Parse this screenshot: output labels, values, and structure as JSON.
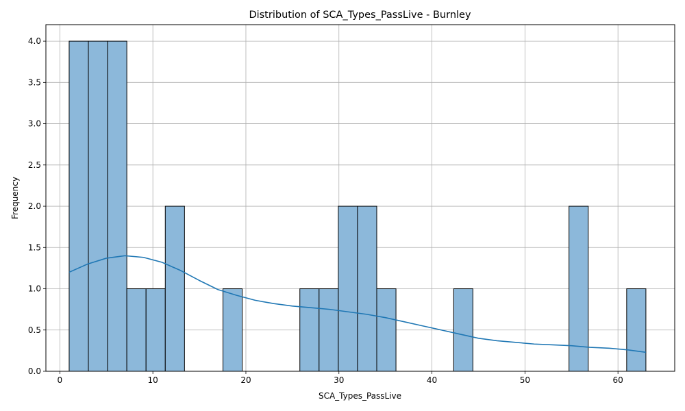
{
  "chart_data": {
    "type": "bar",
    "subtype": "histogram-with-kde",
    "title": "Distribution of SCA_Types_PassLive - Burnley",
    "xlabel": "SCA_Types_PassLive",
    "ylabel": "Frequency",
    "xlim": [
      -1.5,
      66.1
    ],
    "ylim": [
      0,
      4.2
    ],
    "x_ticks": [
      0,
      10,
      20,
      30,
      40,
      50,
      60
    ],
    "y_ticks": [
      0.0,
      0.5,
      1.0,
      1.5,
      2.0,
      2.5,
      3.0,
      3.5,
      4.0
    ],
    "x_tick_labels": [
      "0",
      "10",
      "20",
      "30",
      "40",
      "50",
      "60"
    ],
    "y_tick_labels": [
      "0.0",
      "0.5",
      "1.0",
      "1.5",
      "2.0",
      "2.5",
      "3.0",
      "3.5",
      "4.0"
    ],
    "grid": true,
    "bin_start": 1,
    "bin_width": 2.0667,
    "values": [
      4,
      4,
      4,
      1,
      1,
      2,
      0,
      0,
      1,
      0,
      0,
      0,
      1,
      1,
      2,
      2,
      1,
      0,
      0,
      0,
      1,
      0,
      0,
      0,
      0,
      0,
      2,
      0,
      0,
      1
    ],
    "kde": {
      "x": [
        1,
        3,
        5,
        7,
        9,
        11,
        13,
        15,
        17,
        19,
        21,
        23,
        25,
        27,
        29,
        31,
        33,
        35,
        37,
        39,
        41,
        43,
        45,
        47,
        49,
        51,
        53,
        55,
        57,
        59,
        61,
        63
      ],
      "y": [
        1.2,
        1.3,
        1.37,
        1.4,
        1.38,
        1.32,
        1.22,
        1.1,
        0.99,
        0.92,
        0.86,
        0.82,
        0.79,
        0.77,
        0.75,
        0.72,
        0.69,
        0.65,
        0.6,
        0.55,
        0.5,
        0.45,
        0.4,
        0.37,
        0.35,
        0.33,
        0.32,
        0.31,
        0.29,
        0.28,
        0.26,
        0.23
      ]
    },
    "colors": {
      "bar_fill": "#8cb8da",
      "bar_edge": "#000000",
      "kde_line": "#1f77b4",
      "grid": "#b0b0b0"
    }
  }
}
